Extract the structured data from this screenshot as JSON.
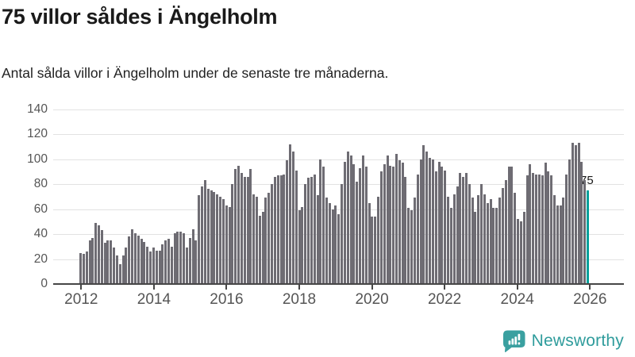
{
  "header": {
    "title": "75 villor såldes i Ängelholm",
    "subtitle": "Antal sålda villor i Ängelholm under de senaste tre månaderna."
  },
  "chart_data": {
    "type": "bar",
    "title": "75 villor såldes i Ängelholm",
    "subtitle": "Antal sålda villor i Ängelholm under de senaste tre månaderna.",
    "x_start": "2012-01",
    "x_frequency": "monthly",
    "x_tick_labels": [
      "2012",
      "2014",
      "2016",
      "2018",
      "2020",
      "2022",
      "2024",
      "2026"
    ],
    "y_ticks": [
      0,
      20,
      40,
      60,
      80,
      100,
      120,
      140
    ],
    "ylim": [
      0,
      140
    ],
    "grid": "horizontal",
    "bar_color": "#6e6c73",
    "values": [
      25,
      24,
      26,
      35,
      37,
      49,
      47,
      43,
      33,
      35,
      35,
      29,
      23,
      16,
      23,
      29,
      38,
      44,
      41,
      39,
      36,
      34,
      30,
      26,
      29,
      27,
      27,
      32,
      35,
      36,
      30,
      41,
      42,
      42,
      41,
      29,
      37,
      44,
      35,
      71,
      78,
      83,
      76,
      75,
      74,
      72,
      70,
      68,
      63,
      62,
      80,
      92,
      95,
      89,
      86,
      86,
      92,
      72,
      70,
      55,
      58,
      69,
      73,
      80,
      86,
      87,
      87,
      88,
      99,
      112,
      106,
      91,
      59,
      62,
      80,
      85,
      86,
      88,
      71,
      100,
      94,
      69,
      65,
      60,
      63,
      56,
      80,
      98,
      106,
      103,
      96,
      82,
      93,
      103,
      94,
      65,
      54,
      54,
      70,
      90,
      96,
      103,
      95,
      94,
      104,
      99,
      97,
      86,
      61,
      59,
      69,
      88,
      100,
      111,
      106,
      101,
      100,
      90,
      98,
      94,
      91,
      70,
      61,
      72,
      78,
      89,
      86,
      89,
      80,
      69,
      58,
      71,
      80,
      72,
      65,
      68,
      61,
      61,
      69,
      77,
      83,
      94,
      94,
      73,
      52,
      50,
      58,
      87,
      96,
      89,
      88,
      88,
      87,
      97,
      90,
      87,
      71,
      63,
      63,
      69,
      88,
      100,
      113,
      111,
      113,
      98,
      83,
      75
    ],
    "highlight": {
      "index": 167,
      "value": 75,
      "label": "75",
      "color": "#00a09b"
    }
  },
  "branding": {
    "name": "Newsworthy",
    "icon": "newsworthy-chart-bubble-icon",
    "color": "#2f9c9c",
    "icon_color": "#3aa0a0"
  }
}
